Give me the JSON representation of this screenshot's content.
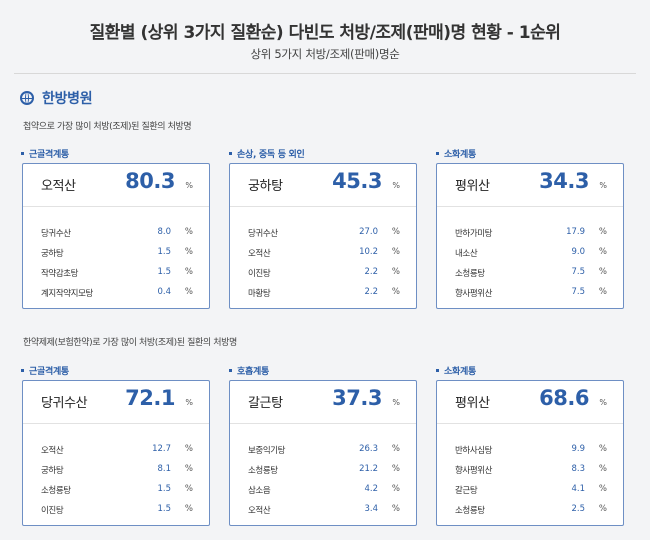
{
  "header": {
    "title": "질환별 (상위 3가지 질환순) 다빈도 처방/조제(판매)명 현황 - 1순위",
    "subtitle": "상위 5가지 처방/조제(판매)명순"
  },
  "section": {
    "title": "한방병원",
    "icon": "globe-icon"
  },
  "groups": [
    {
      "description": "첩약으로 가장 많이 처방(조제)된 질환의 처방명",
      "panels": [
        {
          "label": "근골격계통",
          "top_name": "오적산",
          "top_value": "80.3",
          "unit": "%",
          "items": [
            {
              "name": "당귀수산",
              "value": "8.0",
              "unit": "%"
            },
            {
              "name": "궁하탕",
              "value": "1.5",
              "unit": "%"
            },
            {
              "name": "작약감초탕",
              "value": "1.5",
              "unit": "%"
            },
            {
              "name": "계지작약지모탕",
              "value": "0.4",
              "unit": "%"
            }
          ]
        },
        {
          "label": "손상, 중독 등 외인",
          "top_name": "궁하탕",
          "top_value": "45.3",
          "unit": "%",
          "items": [
            {
              "name": "당귀수산",
              "value": "27.0",
              "unit": "%"
            },
            {
              "name": "오적산",
              "value": "10.2",
              "unit": "%"
            },
            {
              "name": "이진탕",
              "value": "2.2",
              "unit": "%"
            },
            {
              "name": "마황탕",
              "value": "2.2",
              "unit": "%"
            }
          ]
        },
        {
          "label": "소화계통",
          "top_name": "평위산",
          "top_value": "34.3",
          "unit": "%",
          "items": [
            {
              "name": "반하가미탕",
              "value": "17.9",
              "unit": "%"
            },
            {
              "name": "내소산",
              "value": "9.0",
              "unit": "%"
            },
            {
              "name": "소청룡탕",
              "value": "7.5",
              "unit": "%"
            },
            {
              "name": "향사평위산",
              "value": "7.5",
              "unit": "%"
            }
          ]
        }
      ]
    },
    {
      "description": "한약제제(보험한약)로 가장 많이 처방(조제)된 질환의 처방명",
      "panels": [
        {
          "label": "근골격계통",
          "top_name": "당귀수산",
          "top_value": "72.1",
          "unit": "%",
          "items": [
            {
              "name": "오적산",
              "value": "12.7",
              "unit": "%"
            },
            {
              "name": "궁하탕",
              "value": "8.1",
              "unit": "%"
            },
            {
              "name": "소청룡탕",
              "value": "1.5",
              "unit": "%"
            },
            {
              "name": "이진탕",
              "value": "1.5",
              "unit": "%"
            }
          ]
        },
        {
          "label": "호흡계통",
          "top_name": "갈근탕",
          "top_value": "37.3",
          "unit": "%",
          "items": [
            {
              "name": "보중익기탕",
              "value": "26.3",
              "unit": "%"
            },
            {
              "name": "소청룡탕",
              "value": "21.2",
              "unit": "%"
            },
            {
              "name": "삼소음",
              "value": "4.2",
              "unit": "%"
            },
            {
              "name": "오적산",
              "value": "3.4",
              "unit": "%"
            }
          ]
        },
        {
          "label": "소화계통",
          "top_name": "평위산",
          "top_value": "68.6",
          "unit": "%",
          "items": [
            {
              "name": "반하사심탕",
              "value": "9.9",
              "unit": "%"
            },
            {
              "name": "향사평위산",
              "value": "8.3",
              "unit": "%"
            },
            {
              "name": "갈근탕",
              "value": "4.1",
              "unit": "%"
            },
            {
              "name": "소청룡탕",
              "value": "2.5",
              "unit": "%"
            }
          ]
        }
      ]
    }
  ]
}
